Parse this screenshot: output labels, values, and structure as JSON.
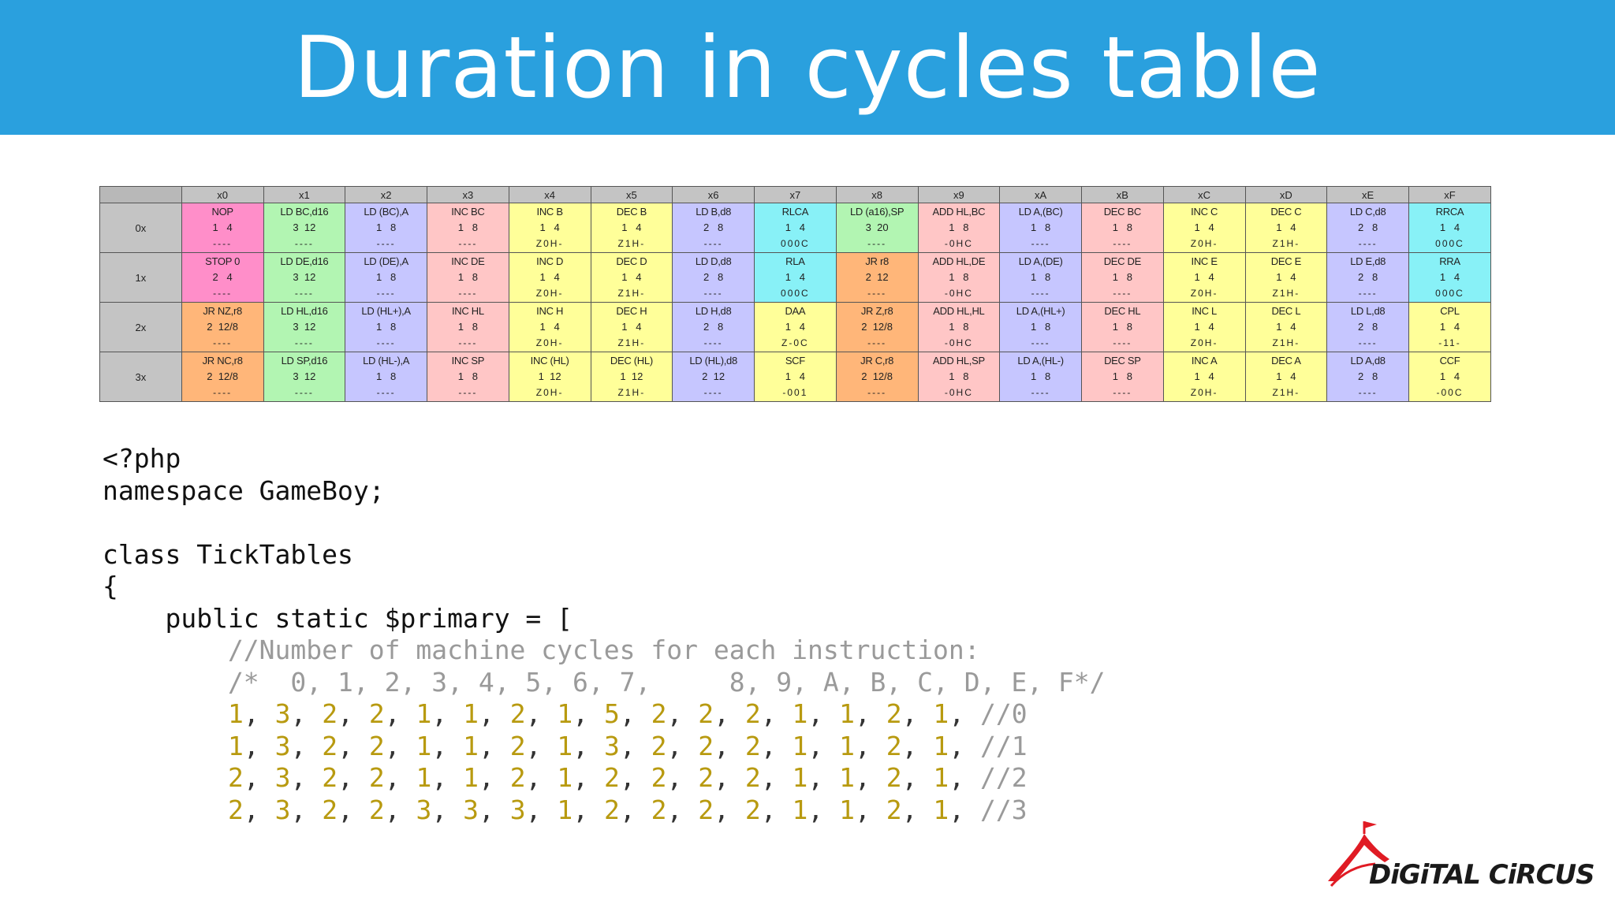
{
  "slide": {
    "title": "Duration in cycles table"
  },
  "opcode_table": {
    "columns": [
      "x0",
      "x1",
      "x2",
      "x3",
      "x4",
      "x5",
      "x6",
      "x7",
      "x8",
      "x9",
      "xA",
      "xB",
      "xC",
      "xD",
      "xE",
      "xF"
    ],
    "rows": [
      {
        "label": "0x",
        "cells": [
          {
            "mn": "NOP",
            "len": "1   4",
            "fl": "----",
            "cls": "c-misc"
          },
          {
            "mn": "LD BC,d16",
            "len": "3  12",
            "fl": "----",
            "cls": "c-ld16"
          },
          {
            "mn": "LD (BC),A",
            "len": "1   8",
            "fl": "----",
            "cls": "c-ld8"
          },
          {
            "mn": "INC BC",
            "len": "1   8",
            "fl": "----",
            "cls": "c-x16"
          },
          {
            "mn": "INC B",
            "len": "1   4",
            "fl": "Z0H-",
            "cls": "c-x8"
          },
          {
            "mn": "DEC B",
            "len": "1   4",
            "fl": "Z1H-",
            "cls": "c-x8"
          },
          {
            "mn": "LD B,d8",
            "len": "2   8",
            "fl": "----",
            "cls": "c-ld8"
          },
          {
            "mn": "RLCA",
            "len": "1   4",
            "fl": "000C",
            "cls": "c-rot"
          },
          {
            "mn": "LD (a16),SP",
            "len": "3  20",
            "fl": "----",
            "cls": "c-ld16"
          },
          {
            "mn": "ADD HL,BC",
            "len": "1   8",
            "fl": "-0HC",
            "cls": "c-x16"
          },
          {
            "mn": "LD A,(BC)",
            "len": "1   8",
            "fl": "----",
            "cls": "c-ld8"
          },
          {
            "mn": "DEC BC",
            "len": "1   8",
            "fl": "----",
            "cls": "c-x16"
          },
          {
            "mn": "INC C",
            "len": "1   4",
            "fl": "Z0H-",
            "cls": "c-x8"
          },
          {
            "mn": "DEC C",
            "len": "1   4",
            "fl": "Z1H-",
            "cls": "c-x8"
          },
          {
            "mn": "LD C,d8",
            "len": "2   8",
            "fl": "----",
            "cls": "c-ld8"
          },
          {
            "mn": "RRCA",
            "len": "1   4",
            "fl": "000C",
            "cls": "c-rot"
          }
        ]
      },
      {
        "label": "1x",
        "cells": [
          {
            "mn": "STOP 0",
            "len": "2   4",
            "fl": "----",
            "cls": "c-misc"
          },
          {
            "mn": "LD DE,d16",
            "len": "3  12",
            "fl": "----",
            "cls": "c-ld16"
          },
          {
            "mn": "LD (DE),A",
            "len": "1   8",
            "fl": "----",
            "cls": "c-ld8"
          },
          {
            "mn": "INC DE",
            "len": "1   8",
            "fl": "----",
            "cls": "c-x16"
          },
          {
            "mn": "INC D",
            "len": "1   4",
            "fl": "Z0H-",
            "cls": "c-x8"
          },
          {
            "mn": "DEC D",
            "len": "1   4",
            "fl": "Z1H-",
            "cls": "c-x8"
          },
          {
            "mn": "LD D,d8",
            "len": "2   8",
            "fl": "----",
            "cls": "c-ld8"
          },
          {
            "mn": "RLA",
            "len": "1   4",
            "fl": "000C",
            "cls": "c-rot"
          },
          {
            "mn": "JR r8",
            "len": "2  12",
            "fl": "----",
            "cls": "c-jmp"
          },
          {
            "mn": "ADD HL,DE",
            "len": "1   8",
            "fl": "-0HC",
            "cls": "c-x16"
          },
          {
            "mn": "LD A,(DE)",
            "len": "1   8",
            "fl": "----",
            "cls": "c-ld8"
          },
          {
            "mn": "DEC DE",
            "len": "1   8",
            "fl": "----",
            "cls": "c-x16"
          },
          {
            "mn": "INC E",
            "len": "1   4",
            "fl": "Z0H-",
            "cls": "c-x8"
          },
          {
            "mn": "DEC E",
            "len": "1   4",
            "fl": "Z1H-",
            "cls": "c-x8"
          },
          {
            "mn": "LD E,d8",
            "len": "2   8",
            "fl": "----",
            "cls": "c-ld8"
          },
          {
            "mn": "RRA",
            "len": "1   4",
            "fl": "000C",
            "cls": "c-rot"
          }
        ]
      },
      {
        "label": "2x",
        "cells": [
          {
            "mn": "JR NZ,r8",
            "len": "2  12/8",
            "fl": "----",
            "cls": "c-jmp"
          },
          {
            "mn": "LD HL,d16",
            "len": "3  12",
            "fl": "----",
            "cls": "c-ld16"
          },
          {
            "mn": "LD (HL+),A",
            "len": "1   8",
            "fl": "----",
            "cls": "c-ld8"
          },
          {
            "mn": "INC HL",
            "len": "1   8",
            "fl": "----",
            "cls": "c-x16"
          },
          {
            "mn": "INC H",
            "len": "1   4",
            "fl": "Z0H-",
            "cls": "c-x8"
          },
          {
            "mn": "DEC H",
            "len": "1   4",
            "fl": "Z1H-",
            "cls": "c-x8"
          },
          {
            "mn": "LD H,d8",
            "len": "2   8",
            "fl": "----",
            "cls": "c-ld8"
          },
          {
            "mn": "DAA",
            "len": "1   4",
            "fl": "Z-0C",
            "cls": "c-x8"
          },
          {
            "mn": "JR Z,r8",
            "len": "2  12/8",
            "fl": "----",
            "cls": "c-jmp"
          },
          {
            "mn": "ADD HL,HL",
            "len": "1   8",
            "fl": "-0HC",
            "cls": "c-x16"
          },
          {
            "mn": "LD A,(HL+)",
            "len": "1   8",
            "fl": "----",
            "cls": "c-ld8"
          },
          {
            "mn": "DEC HL",
            "len": "1   8",
            "fl": "----",
            "cls": "c-x16"
          },
          {
            "mn": "INC L",
            "len": "1   4",
            "fl": "Z0H-",
            "cls": "c-x8"
          },
          {
            "mn": "DEC L",
            "len": "1   4",
            "fl": "Z1H-",
            "cls": "c-x8"
          },
          {
            "mn": "LD L,d8",
            "len": "2   8",
            "fl": "----",
            "cls": "c-ld8"
          },
          {
            "mn": "CPL",
            "len": "1   4",
            "fl": "-11-",
            "cls": "c-x8"
          }
        ]
      },
      {
        "label": "3x",
        "cells": [
          {
            "mn": "JR NC,r8",
            "len": "2  12/8",
            "fl": "----",
            "cls": "c-jmp"
          },
          {
            "mn": "LD SP,d16",
            "len": "3  12",
            "fl": "----",
            "cls": "c-ld16"
          },
          {
            "mn": "LD (HL-),A",
            "len": "1   8",
            "fl": "----",
            "cls": "c-ld8"
          },
          {
            "mn": "INC SP",
            "len": "1   8",
            "fl": "----",
            "cls": "c-x16"
          },
          {
            "mn": "INC (HL)",
            "len": "1  12",
            "fl": "Z0H-",
            "cls": "c-x8"
          },
          {
            "mn": "DEC (HL)",
            "len": "1  12",
            "fl": "Z1H-",
            "cls": "c-x8"
          },
          {
            "mn": "LD (HL),d8",
            "len": "2  12",
            "fl": "----",
            "cls": "c-ld8"
          },
          {
            "mn": "SCF",
            "len": "1   4",
            "fl": "-001",
            "cls": "c-x8"
          },
          {
            "mn": "JR C,r8",
            "len": "2  12/8",
            "fl": "----",
            "cls": "c-jmp"
          },
          {
            "mn": "ADD HL,SP",
            "len": "1   8",
            "fl": "-0HC",
            "cls": "c-x16"
          },
          {
            "mn": "LD A,(HL-)",
            "len": "1   8",
            "fl": "----",
            "cls": "c-ld8"
          },
          {
            "mn": "DEC SP",
            "len": "1   8",
            "fl": "----",
            "cls": "c-x16"
          },
          {
            "mn": "INC A",
            "len": "1   4",
            "fl": "Z0H-",
            "cls": "c-x8"
          },
          {
            "mn": "DEC A",
            "len": "1   4",
            "fl": "Z1H-",
            "cls": "c-x8"
          },
          {
            "mn": "LD A,d8",
            "len": "2   8",
            "fl": "----",
            "cls": "c-ld8"
          },
          {
            "mn": "CCF",
            "len": "1   4",
            "fl": "-00C",
            "cls": "c-x8"
          }
        ]
      }
    ]
  },
  "code": {
    "open_tag": "<?php",
    "namespace_line": "namespace GameBoy;",
    "class_line": "class TickTables",
    "brace_open": "{",
    "property_line": "    public static $primary = [",
    "comment_line": "        //Number of machine cycles for each instruction:",
    "header_comment": "        /*  0, 1, 2, 3, 4, 5, 6, 7,     8, 9, A, B, C, D, E, F*/",
    "indent": "        ",
    "rows": [
      {
        "values": [
          "1",
          "3",
          "2",
          "2",
          "1",
          "1",
          "2",
          "1",
          "5",
          "2",
          "2",
          "2",
          "1",
          "1",
          "2",
          "1"
        ],
        "comment": "//0"
      },
      {
        "values": [
          "1",
          "3",
          "2",
          "2",
          "1",
          "1",
          "2",
          "1",
          "3",
          "2",
          "2",
          "2",
          "1",
          "1",
          "2",
          "1"
        ],
        "comment": "//1"
      },
      {
        "values": [
          "2",
          "3",
          "2",
          "2",
          "1",
          "1",
          "2",
          "1",
          "2",
          "2",
          "2",
          "2",
          "1",
          "1",
          "2",
          "1"
        ],
        "comment": "//2"
      },
      {
        "values": [
          "2",
          "3",
          "2",
          "2",
          "3",
          "3",
          "3",
          "1",
          "2",
          "2",
          "2",
          "2",
          "1",
          "1",
          "2",
          "1"
        ],
        "comment": "//3"
      }
    ]
  },
  "logo": {
    "text": "DiGiTAL CiRCUS",
    "colors": {
      "red": "#e01b24",
      "dark": "#1a1a1a"
    }
  },
  "colors": {
    "banner": "#2aa0de",
    "code_number": "#b89a10",
    "code_comment": "#9a9a9a"
  }
}
